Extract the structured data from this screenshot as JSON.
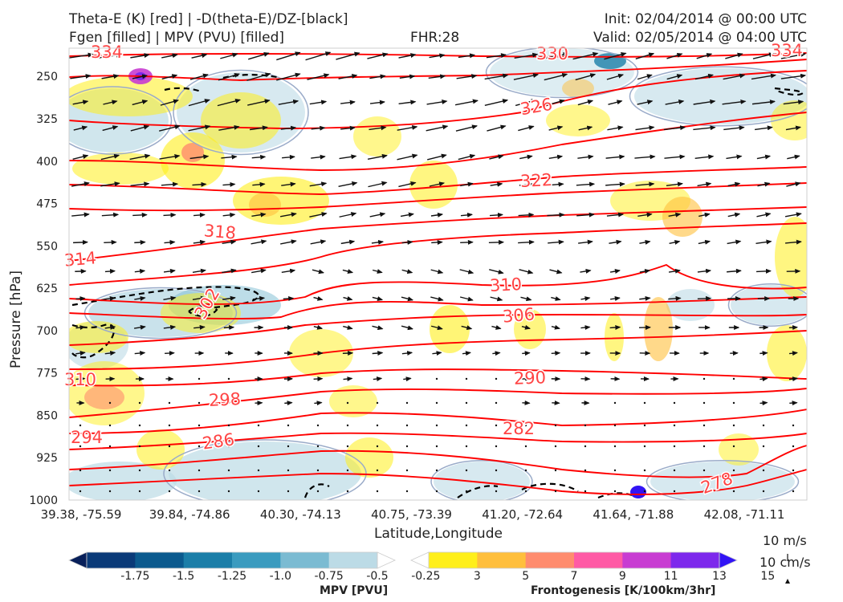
{
  "header": {
    "left_line1": "Theta-E (K) [red] | -D(theta-E)/DZ-[black]",
    "left_line2": "Fgen [filled] | MPV (PVU) [filled]",
    "center": "FHR:28",
    "right_line1": "Init: 02/04/2014 @ 00:00 UTC",
    "right_line2": "Valid: 02/05/2014 @ 04:00 UTC"
  },
  "chart_data": {
    "type": "cross-section",
    "xlabel": "Latitude,Longitude",
    "ylabel": "Pressure [hPa]",
    "y_range": [
      200,
      1000
    ],
    "y_ticks": [
      250,
      325,
      400,
      475,
      550,
      625,
      700,
      775,
      850,
      925,
      1000
    ],
    "x_ticks": [
      "39.38, -75.59",
      "39.84, -74.86",
      "40.30, -74.13",
      "40.75, -73.39",
      "41.20, -72.64",
      "41.64, -71.88",
      "42.08, -71.11"
    ],
    "theta_e_labels": [
      "334",
      "330",
      "334",
      "326",
      "322",
      "318",
      "314",
      "310",
      "306",
      "302",
      "310",
      "290",
      "298",
      "282",
      "294",
      "286",
      "278"
    ],
    "theta_e_levels": [
      278,
      282,
      286,
      290,
      294,
      298,
      302,
      306,
      310,
      314,
      318,
      322,
      326,
      330,
      334
    ],
    "colors": {
      "theta_e": "#ff0000",
      "label": "#ff4444",
      "stability": "#000000"
    }
  },
  "colorbars": {
    "mpv": {
      "label": "MPV [PVU]",
      "ticks": [
        "-1.75",
        "-1.5",
        "-1.25",
        "-1.0",
        "-0.75",
        "-0.5",
        "-0.25"
      ],
      "colors": [
        "#08205a",
        "#0a3a78",
        "#0b5a8e",
        "#1b7ea8",
        "#3a9bbf",
        "#7bbbd2",
        "#bcdbe6",
        "#ffffff"
      ]
    },
    "fgen": {
      "label": "Frontogenesis [K/100km/3hr]",
      "ticks": [
        "3",
        "5",
        "7",
        "9",
        "11",
        "13",
        "15"
      ],
      "colors": [
        "#ffffff",
        "#ffef1a",
        "#ffbf3c",
        "#ff8c6e",
        "#ff5aa5",
        "#c83cd2",
        "#7d28ec",
        "#3214f5"
      ]
    }
  },
  "reference_vectors": {
    "horizontal": "10 m/s",
    "vertical": "10 cm/s"
  }
}
